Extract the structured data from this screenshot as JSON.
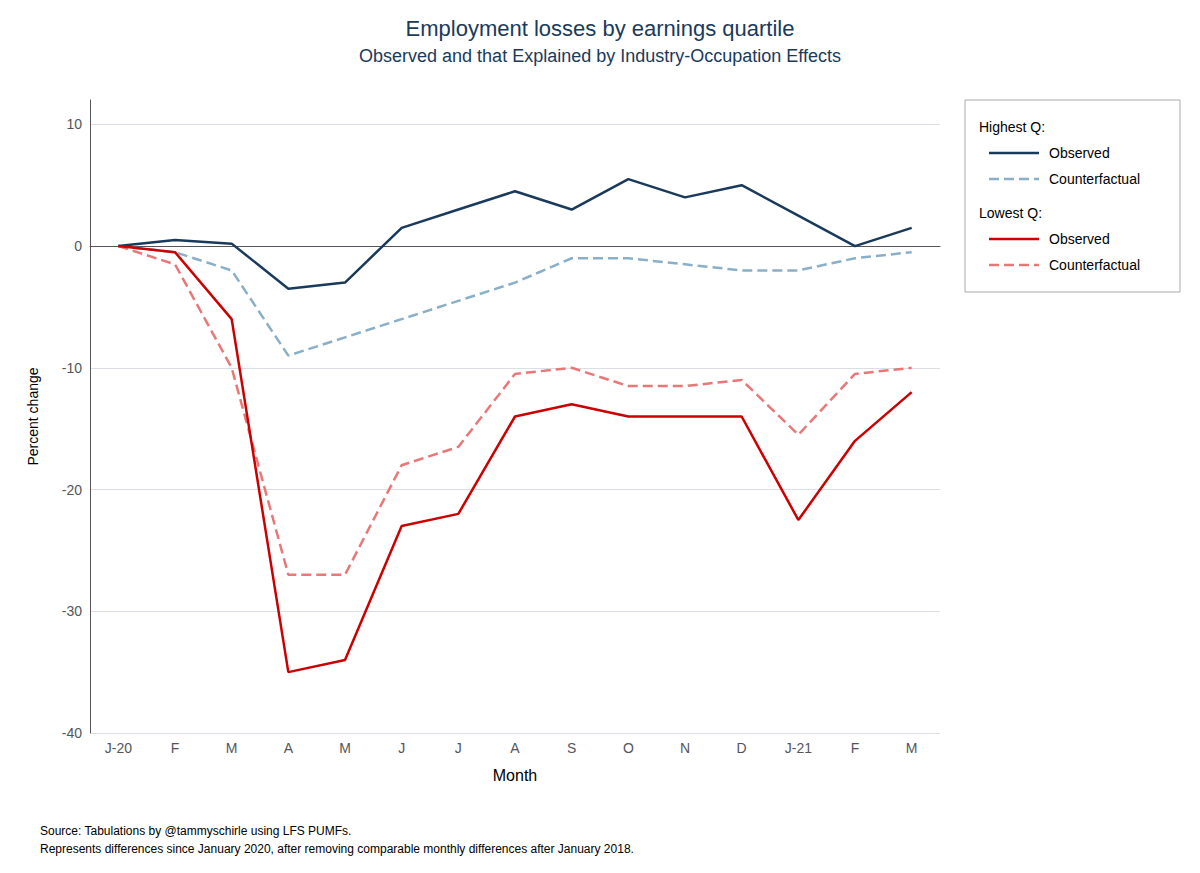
{
  "chart_data": {
    "type": "line",
    "title": "Employment losses by earnings quartile",
    "subtitle": "Observed and that Explained by Industry-Occupation Effects",
    "title_color": "#1a3a5c",
    "xlabel": "Month",
    "ylabel": "Percent change",
    "categories": [
      "J-20",
      "F",
      "M",
      "A",
      "M",
      "J",
      "J",
      "A",
      "S",
      "O",
      "N",
      "D",
      "J-21",
      "F",
      "M"
    ],
    "series": [
      {
        "name": "Observed",
        "group": "Highest Q:",
        "color": "#1a3a5c",
        "line_style": "solid",
        "values": [
          0,
          0.5,
          0.2,
          -3.5,
          -3.0,
          1.5,
          3.0,
          4.5,
          3.0,
          5.5,
          4.0,
          5.0,
          2.5,
          0.0,
          1.5
        ]
      },
      {
        "name": "Counterfactual",
        "group": "Highest Q:",
        "color": "#8aafc8",
        "line_style": "dashed",
        "values": [
          0,
          -0.5,
          -2.0,
          -9.0,
          -7.5,
          -6.0,
          -4.5,
          -3.0,
          -1.0,
          -1.0,
          -1.5,
          -2.0,
          -2.0,
          -1.0,
          -0.5
        ]
      },
      {
        "name": "Observed",
        "group": "Lowest Q:",
        "color": "#cc0000",
        "line_style": "solid",
        "values": [
          0,
          -0.5,
          -6.0,
          -35.0,
          -34.0,
          -23.0,
          -22.0,
          -14.0,
          -13.0,
          -14.0,
          -14.0,
          -14.0,
          -22.5,
          -16.0,
          -12.0
        ]
      },
      {
        "name": "Counterfactual",
        "group": "Lowest Q:",
        "color": "#e87878",
        "line_style": "dashed",
        "values": [
          0,
          -1.5,
          -10.0,
          -27.0,
          -27.0,
          -18.0,
          -16.5,
          -10.5,
          -10.0,
          -11.5,
          -11.5,
          -11.0,
          -15.5,
          -10.5,
          -10.0
        ]
      }
    ],
    "ylim": [
      -40,
      12
    ],
    "yticks": [
      -40,
      -30,
      -20,
      -10,
      0,
      10
    ],
    "grid": true,
    "legend": "right",
    "annotations": [
      "Source: Tabulations by @tammyschirle using LFS PUMFs.",
      "Represents differences since January 2020, after removing comparable monthly differences after January 2018."
    ]
  }
}
